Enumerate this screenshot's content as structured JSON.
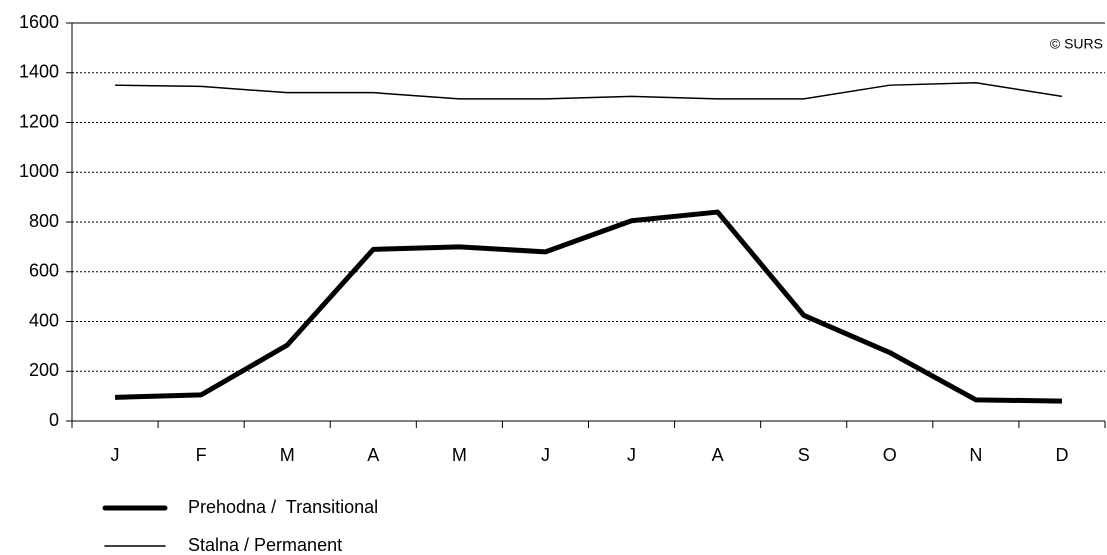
{
  "chart_data": {
    "type": "line",
    "annotation": "© SURS",
    "categories": [
      "J",
      "F",
      "M",
      "A",
      "M",
      "J",
      "J",
      "A",
      "S",
      "O",
      "N",
      "D"
    ],
    "series": [
      {
        "name": "Prehodna /  Transitional",
        "color": "#000000",
        "width": 5,
        "values": [
          95,
          105,
          305,
          690,
          700,
          680,
          805,
          840,
          425,
          275,
          85,
          80
        ]
      },
      {
        "name": "Stalna / Permanent",
        "color": "#000000",
        "width": 1.5,
        "values": [
          1350,
          1345,
          1320,
          1320,
          1295,
          1295,
          1305,
          1295,
          1295,
          1350,
          1360,
          1305
        ]
      }
    ],
    "ylim": [
      0,
      1600
    ],
    "yticks": [
      0,
      200,
      400,
      600,
      800,
      1000,
      1200,
      1400,
      1600
    ],
    "grid": true
  }
}
